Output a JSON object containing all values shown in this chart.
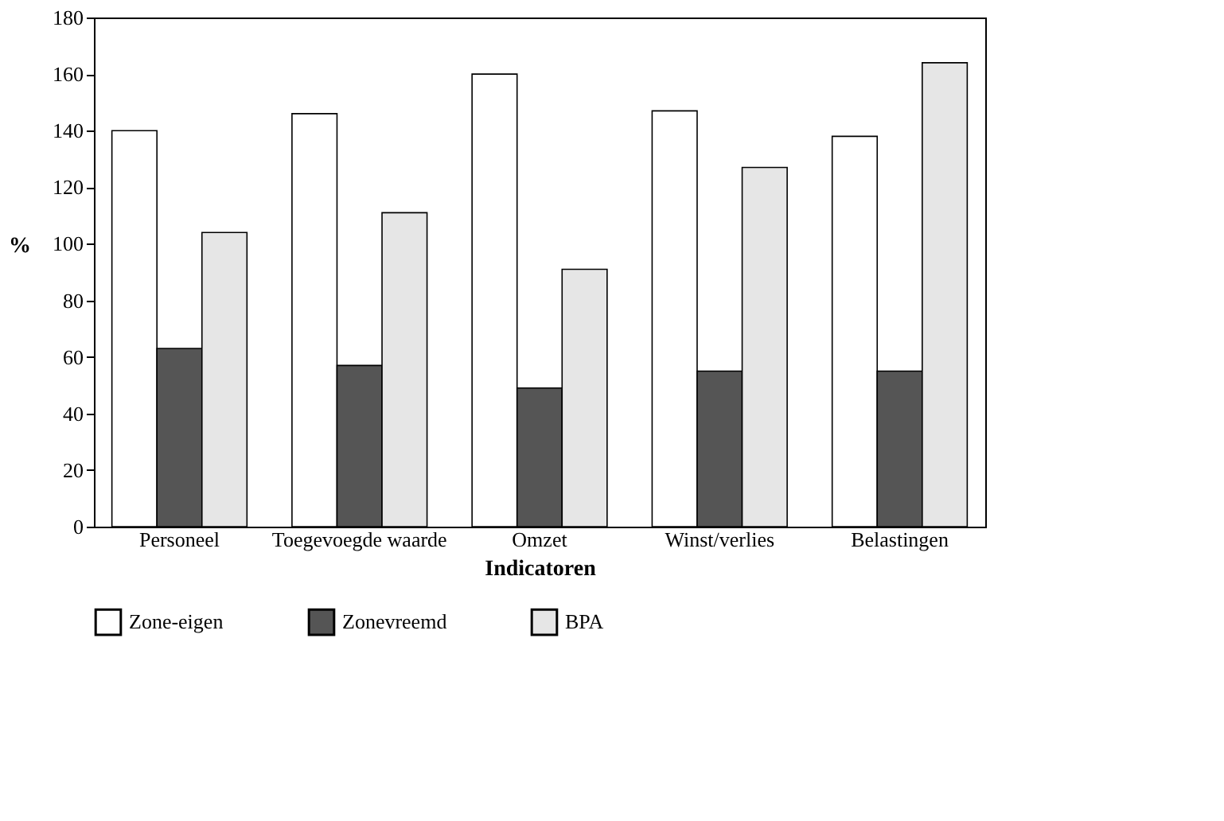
{
  "chart_data": {
    "type": "bar",
    "xlabel": "Indicatoren",
    "ylabel": "%",
    "categories": [
      "Personeel",
      "Toegevoegde waarde",
      "Omzet",
      "Winst/verlies",
      "Belastingen"
    ],
    "series": [
      {
        "name": "Zone-eigen",
        "color": "#ffffff",
        "values": [
          140,
          146,
          160,
          147,
          138
        ]
      },
      {
        "name": "Zonevreemd",
        "color": "#555555",
        "values": [
          63,
          57,
          49,
          55,
          55
        ]
      },
      {
        "name": "BPA",
        "color": "#e6e6e6",
        "values": [
          104,
          111,
          91,
          127,
          164
        ]
      }
    ],
    "ylim": [
      0,
      180
    ],
    "yticks": [
      0,
      20,
      40,
      60,
      80,
      100,
      120,
      140,
      160,
      180
    ],
    "grid": false,
    "legend": "bottom"
  }
}
